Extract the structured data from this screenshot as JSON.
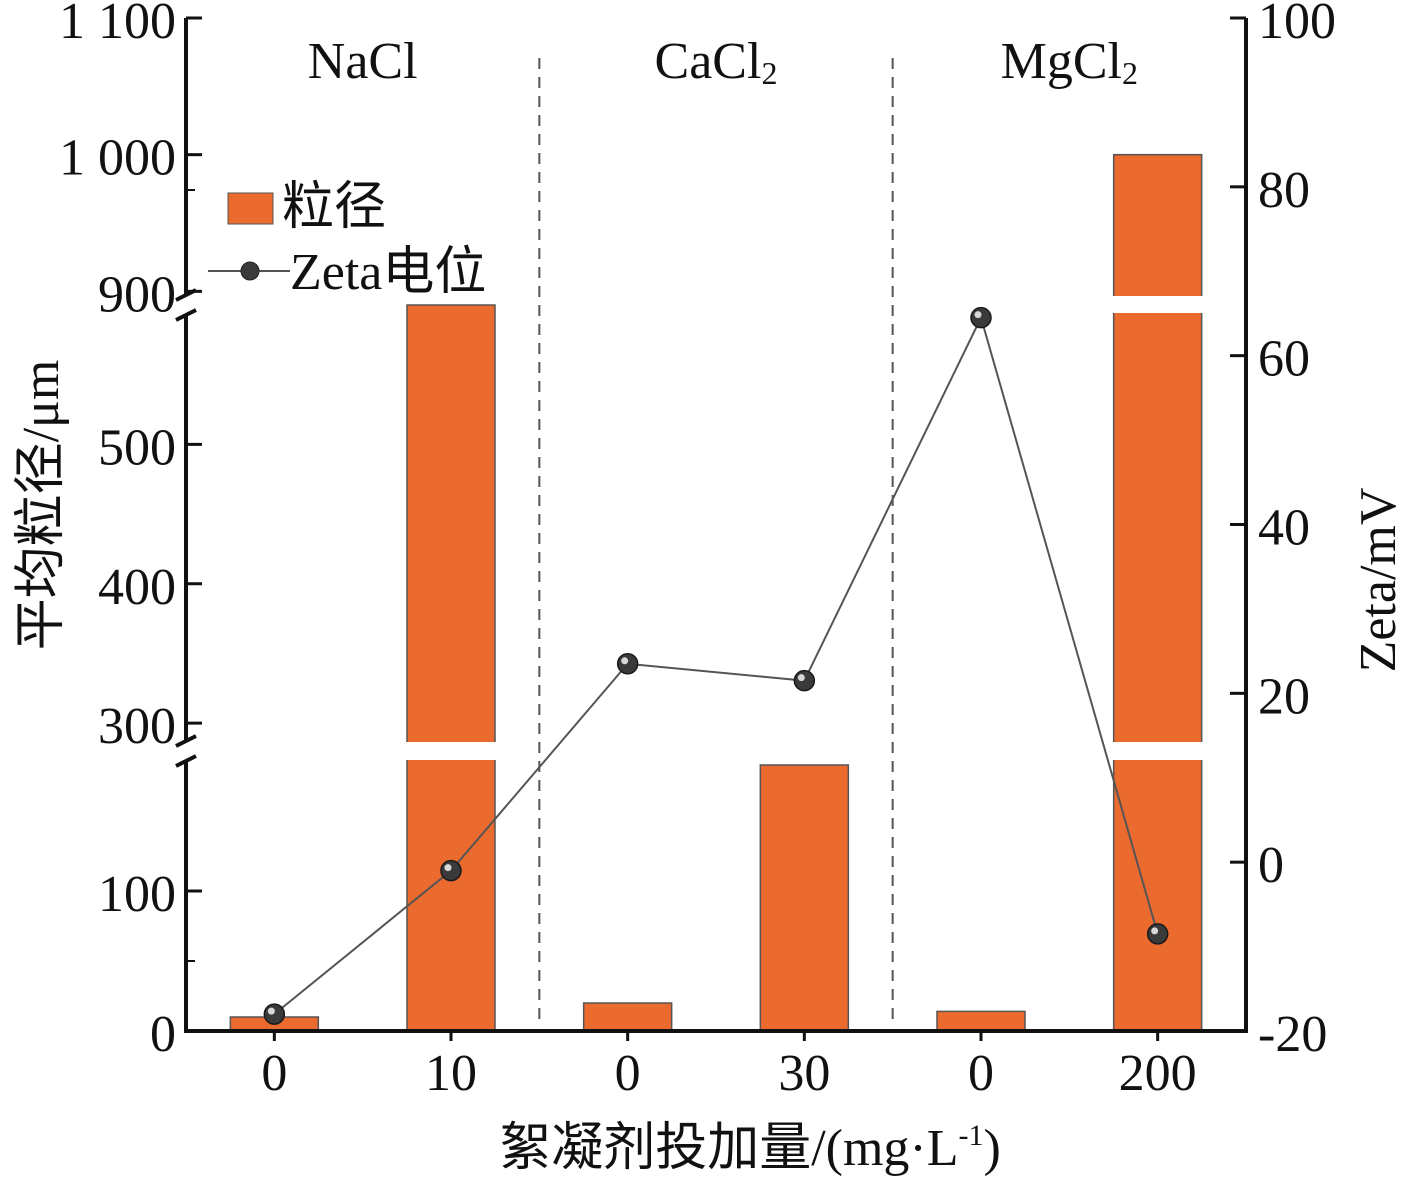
{
  "chart_data": {
    "type": "bar",
    "x_categories": [
      "0",
      "10",
      "0",
      "30",
      "0",
      "200"
    ],
    "groups": [
      {
        "label": "NaCl",
        "sub": ""
      },
      {
        "label": "CaCl",
        "sub": "2"
      },
      {
        "label": "MgCl",
        "sub": "2"
      }
    ],
    "xlabel": "絮凝剂投加量/(mg·L",
    "xlabel_sup": "-1",
    "xlabel_tail": ")",
    "ylabel_left": "平均粒径/μm",
    "ylabel_right": "Zeta/mV",
    "y_left_ticks": [
      "0",
      "100",
      "300",
      "400",
      "500",
      "900",
      "1 000",
      "1 100"
    ],
    "y_right_ticks": [
      "-20",
      "0",
      "20",
      "40",
      "60",
      "80",
      "100"
    ],
    "y_left_axis_breaks": [
      [
        200,
        280
      ],
      [
        600,
        890
      ]
    ],
    "y_right_range": [
      -20,
      100
    ],
    "legend_position": "upper-left",
    "series": [
      {
        "name": "粒径",
        "type": "bar",
        "axis": "left",
        "color": "#EB6A2E",
        "values": [
          10,
          790,
          20,
          190,
          14,
          1000
        ]
      },
      {
        "name": "Zeta电位",
        "type": "line",
        "axis": "right",
        "color": "#555555",
        "values": [
          -18,
          -1,
          23.5,
          21.5,
          64.5,
          -8.5
        ]
      }
    ]
  }
}
